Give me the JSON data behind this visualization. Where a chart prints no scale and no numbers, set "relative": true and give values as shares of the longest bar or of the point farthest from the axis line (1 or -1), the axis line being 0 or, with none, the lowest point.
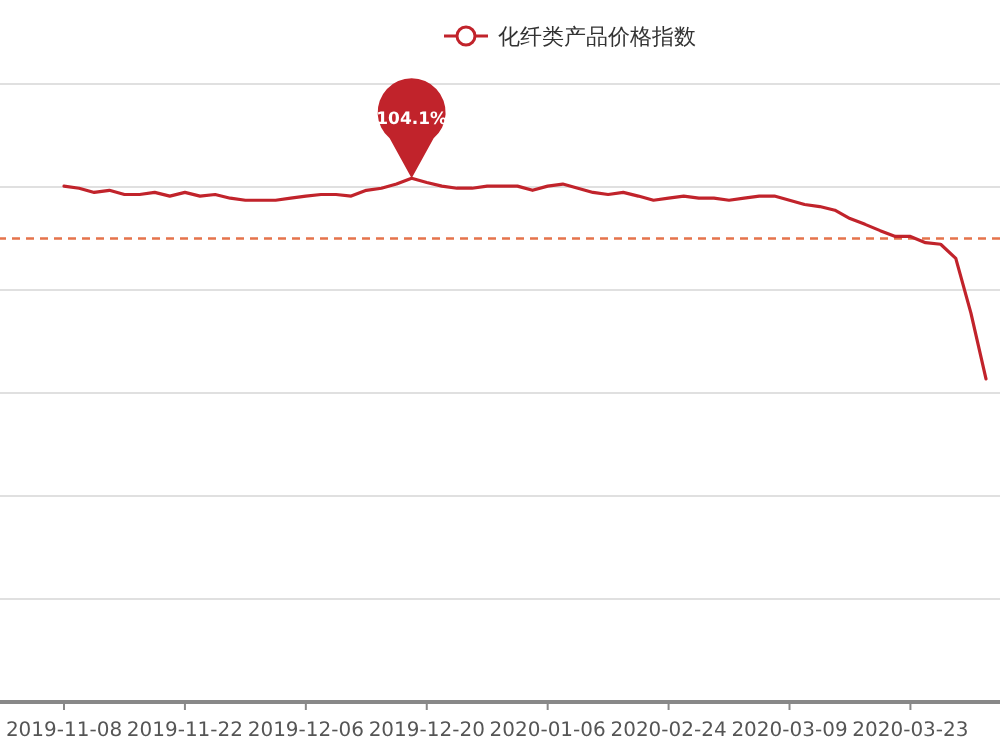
{
  "chart_data": {
    "type": "line",
    "relative": true,
    "grid": "y",
    "legend": "top",
    "line_style": "solid",
    "categories": [
      "2019-11-08",
      null,
      null,
      null,
      null,
      null,
      null,
      null,
      "2019-11-22",
      null,
      null,
      null,
      null,
      null,
      null,
      null,
      "2019-12-06",
      null,
      null,
      null,
      null,
      null,
      null,
      null,
      "2019-12-20",
      null,
      null,
      null,
      null,
      null,
      null,
      null,
      "2020-01-06",
      null,
      null,
      null,
      null,
      null,
      null,
      null,
      "2020-02-24",
      null,
      null,
      null,
      null,
      null,
      null,
      null,
      "2020-03-09",
      null,
      null,
      null,
      null,
      null,
      null,
      null,
      "2020-03-23",
      null,
      null,
      null,
      null,
      null
    ],
    "series": [
      {
        "name": "化纤类产品价格指数",
        "color": "#c1232b",
        "values": [
          0.985,
          0.981,
          0.973,
          0.977,
          0.969,
          0.969,
          0.973,
          0.966,
          0.973,
          0.966,
          0.969,
          0.962,
          0.958,
          0.958,
          0.958,
          0.962,
          0.966,
          0.969,
          0.969,
          0.966,
          0.977,
          0.981,
          0.989,
          1.0,
          0.992,
          0.985,
          0.981,
          0.981,
          0.985,
          0.985,
          0.985,
          0.977,
          0.985,
          0.989,
          0.981,
          0.973,
          0.969,
          0.973,
          0.966,
          0.958,
          0.962,
          0.966,
          0.962,
          0.962,
          0.958,
          0.962,
          0.966,
          0.966,
          0.958,
          0.95,
          0.946,
          0.939,
          0.923,
          0.912,
          0.9,
          0.889,
          0.889,
          0.877,
          0.874,
          0.847,
          0.743,
          0.617
        ],
        "value_labels": [
          null,
          null,
          null,
          null,
          null,
          null,
          null,
          null,
          null,
          null,
          null,
          null,
          null,
          null,
          null,
          null,
          null,
          null,
          null,
          null,
          null,
          null,
          null,
          null,
          null,
          null,
          null,
          null,
          null,
          null,
          null,
          null,
          null,
          null,
          null,
          null,
          null,
          null,
          null,
          null,
          null,
          null,
          null,
          null,
          null,
          null,
          null,
          null,
          null,
          null,
          null,
          null,
          null,
          null,
          null,
          null,
          null,
          null,
          null,
          null,
          null,
          null
        ]
      }
    ],
    "annotations": [
      "104.1%"
    ],
    "ref_lines": [
      {
        "axis": "y",
        "value": 0.885,
        "color": "#e5734b",
        "line_style": "dashed"
      }
    ]
  }
}
